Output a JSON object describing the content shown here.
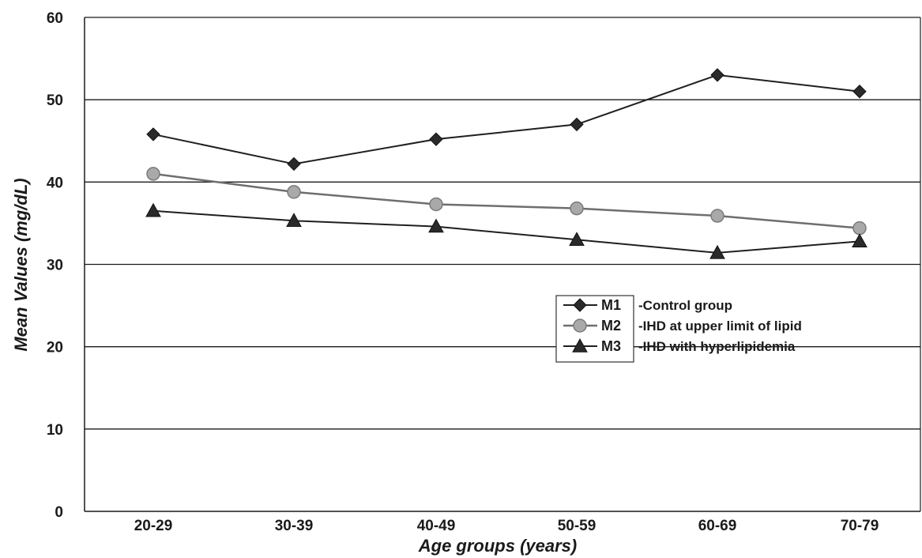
{
  "chart_data": {
    "type": "line",
    "title": "",
    "xlabel": "Age groups (years)",
    "ylabel": "Mean Values (mg/dL)",
    "categories": [
      "20-29",
      "30-39",
      "40-49",
      "50-59",
      "60-69",
      "70-79"
    ],
    "ylim": [
      0,
      60
    ],
    "yticks": [
      0,
      10,
      20,
      30,
      40,
      50,
      60
    ],
    "grid": true,
    "legend_position": "right-middle",
    "series": [
      {
        "name": "M1",
        "description": "-Control group",
        "marker": "diamond",
        "color": "#2a2a2a",
        "values": [
          45.8,
          42.2,
          45.2,
          47.0,
          53.0,
          51.0
        ]
      },
      {
        "name": "M2",
        "description": "-IHD at upper limit of  lipid",
        "marker": "circle",
        "color": "#8c8c8c",
        "values": [
          41.0,
          38.8,
          37.3,
          36.8,
          35.9,
          34.4
        ]
      },
      {
        "name": "M3",
        "description": "-IHD with hyperlipidemia",
        "marker": "triangle",
        "color": "#2a2a2a",
        "values": [
          36.5,
          35.3,
          34.6,
          33.0,
          31.4,
          32.8
        ]
      }
    ]
  }
}
